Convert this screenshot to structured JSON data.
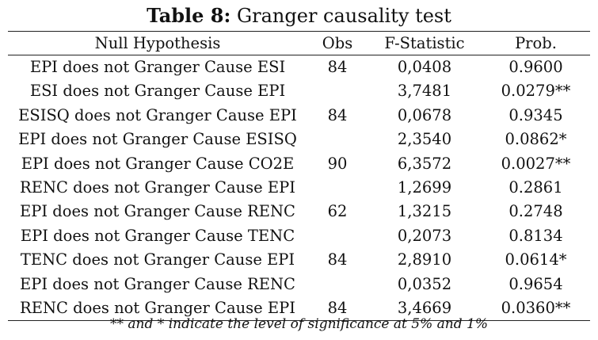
{
  "title": {
    "label": "Table 8:",
    "text": "Granger causality test"
  },
  "table": {
    "headers": [
      "Null Hypothesis",
      "Obs",
      "F-Statistic",
      "Prob."
    ],
    "rows": [
      {
        "hypothesis": "EPI does not Granger Cause ESI",
        "obs": "84",
        "f_stat": "0,0408",
        "prob": "0.9600"
      },
      {
        "hypothesis": "ESI does not Granger Cause EPI",
        "obs": "",
        "f_stat": "3,7481",
        "prob": "0.0279**"
      },
      {
        "hypothesis": "ESISQ does not Granger Cause EPI",
        "obs": "84",
        "f_stat": "0,0678",
        "prob": "0.9345"
      },
      {
        "hypothesis": "EPI does not Granger Cause ESISQ",
        "obs": "",
        "f_stat": "2,3540",
        "prob": "0.0862*"
      },
      {
        "hypothesis": "EPI does not Granger Cause CO2E",
        "obs": "90",
        "f_stat": "6,3572",
        "prob": "0.0027**"
      },
      {
        "hypothesis": "RENC does not Granger Cause EPI",
        "obs": "",
        "f_stat": "1,2699",
        "prob": "0.2861"
      },
      {
        "hypothesis": "EPI does not Granger Cause RENC",
        "obs": "62",
        "f_stat": "1,3215",
        "prob": "0.2748"
      },
      {
        "hypothesis": "EPI does not Granger Cause TENC",
        "obs": "",
        "f_stat": "0,2073",
        "prob": "0.8134"
      },
      {
        "hypothesis": "TENC does not Granger Cause EPI",
        "obs": "84",
        "f_stat": "2,8910",
        "prob": "0.0614*"
      },
      {
        "hypothesis": "EPI does not Granger Cause RENC",
        "obs": "",
        "f_stat": "0,0352",
        "prob": "0.9654"
      },
      {
        "hypothesis": "RENC does not Granger Cause EPI",
        "obs": "84",
        "f_stat": "3,4669",
        "prob": "0.0360**"
      }
    ]
  },
  "note": "** and * indicate the level of significance at 5% and 1%"
}
